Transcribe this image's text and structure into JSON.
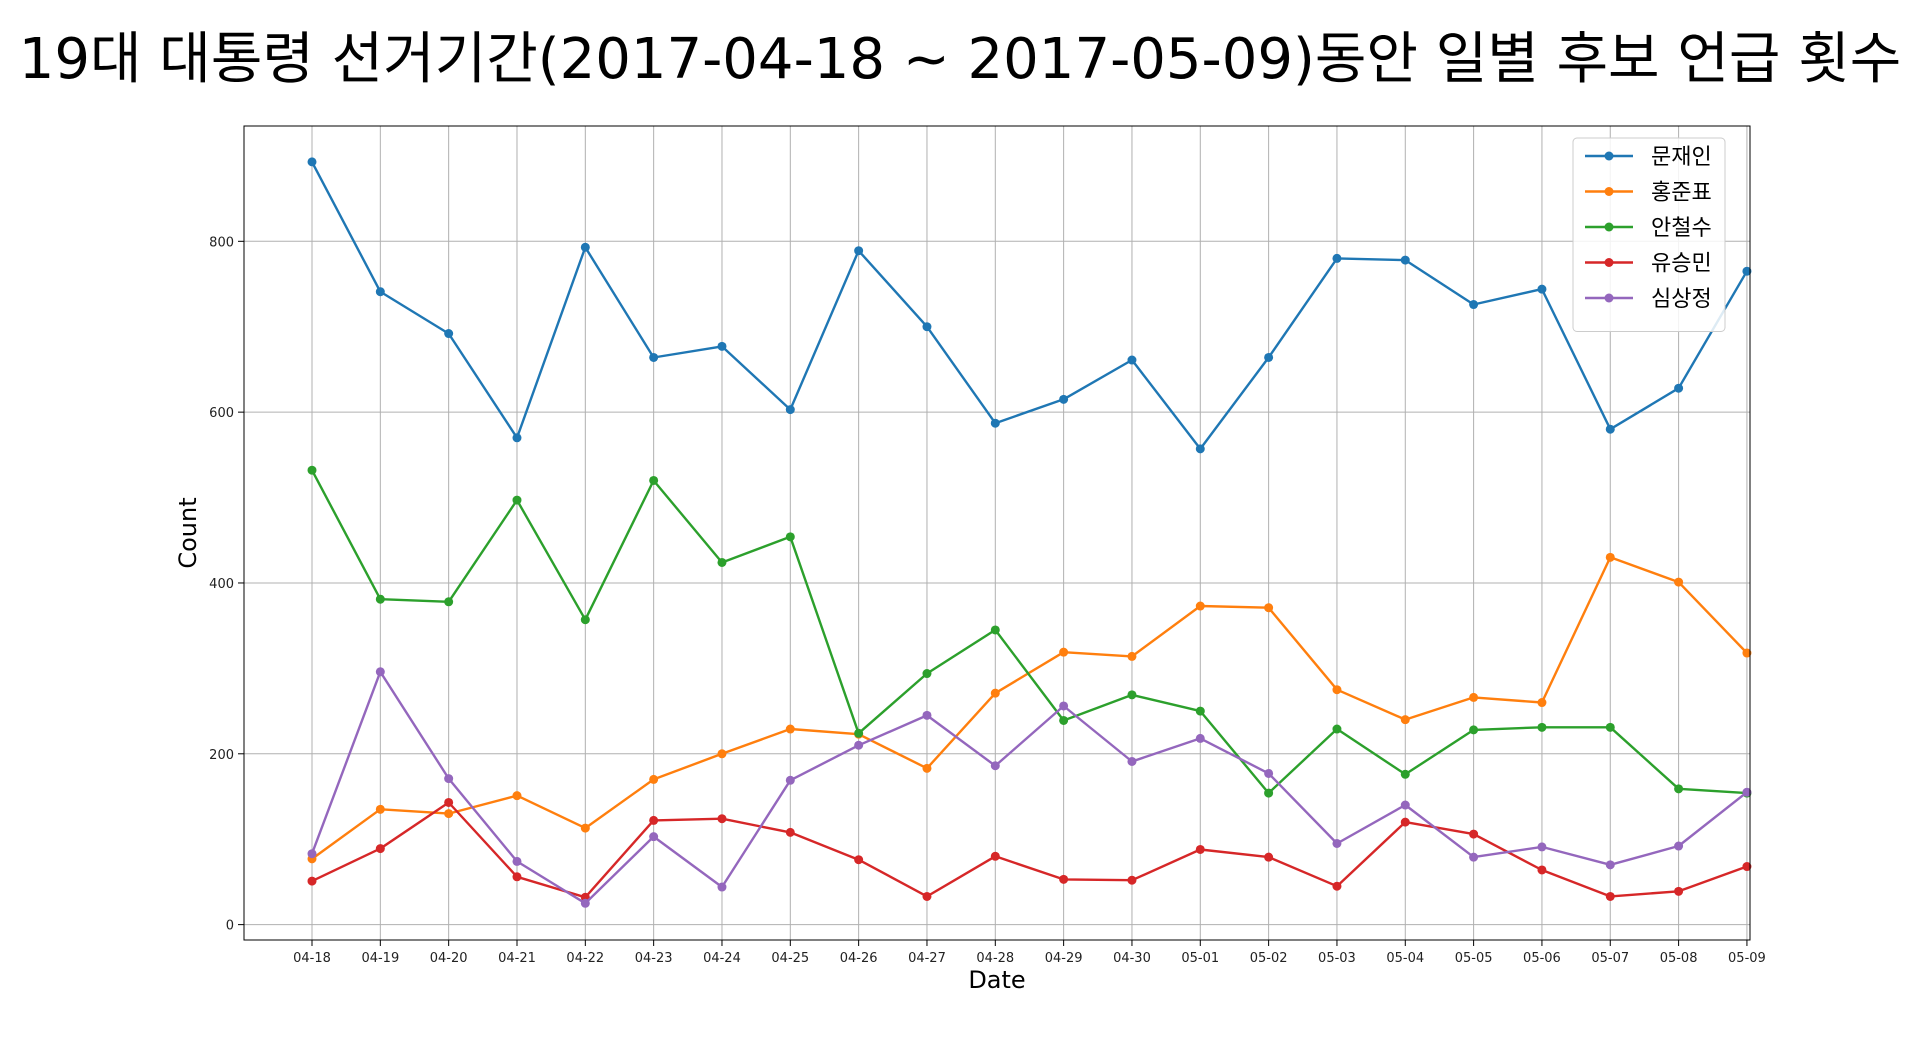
{
  "chart_data": {
    "type": "line",
    "title": "19대 대통령 선거기간(2017-04-18 ~ 2017-05-09)동안 일별 후보 언급 횟수",
    "xlabel": "Date",
    "ylabel": "Count",
    "ylim": [
      -18,
      935
    ],
    "yticks": [
      0,
      200,
      400,
      600,
      800
    ],
    "grid": true,
    "legend_position": "top-right",
    "categories": [
      "04-18",
      "04-19",
      "04-20",
      "04-21",
      "04-22",
      "04-23",
      "04-24",
      "04-25",
      "04-26",
      "04-27",
      "04-28",
      "04-29",
      "04-30",
      "05-01",
      "05-02",
      "05-03",
      "05-04",
      "05-05",
      "05-06",
      "05-07",
      "05-08",
      "05-09"
    ],
    "series": [
      {
        "name": "문재인",
        "color": "#1f77b4",
        "values": [
          893,
          741,
          692,
          570,
          793,
          664,
          677,
          603,
          789,
          700,
          587,
          615,
          661,
          557,
          664,
          780,
          778,
          726,
          744,
          580,
          628,
          765
        ]
      },
      {
        "name": "홍준표",
        "color": "#ff7f0e",
        "values": [
          77,
          135,
          130,
          151,
          113,
          170,
          200,
          229,
          223,
          183,
          271,
          319,
          314,
          373,
          371,
          275,
          240,
          266,
          260,
          430,
          401,
          318
        ]
      },
      {
        "name": "안철수",
        "color": "#2ca02c",
        "values": [
          532,
          381,
          378,
          497,
          357,
          520,
          424,
          454,
          224,
          294,
          345,
          239,
          269,
          250,
          154,
          229,
          176,
          228,
          231,
          231,
          159,
          154
        ]
      },
      {
        "name": "유승민",
        "color": "#d62728",
        "values": [
          51,
          89,
          143,
          56,
          32,
          122,
          124,
          108,
          76,
          33,
          80,
          53,
          52,
          88,
          79,
          45,
          120,
          106,
          64,
          33,
          39,
          68
        ]
      },
      {
        "name": "심상정",
        "color": "#9467bd",
        "values": [
          83,
          296,
          171,
          74,
          25,
          103,
          44,
          169,
          210,
          245,
          186,
          256,
          191,
          218,
          177,
          95,
          140,
          79,
          91,
          70,
          92,
          155
        ]
      }
    ]
  }
}
